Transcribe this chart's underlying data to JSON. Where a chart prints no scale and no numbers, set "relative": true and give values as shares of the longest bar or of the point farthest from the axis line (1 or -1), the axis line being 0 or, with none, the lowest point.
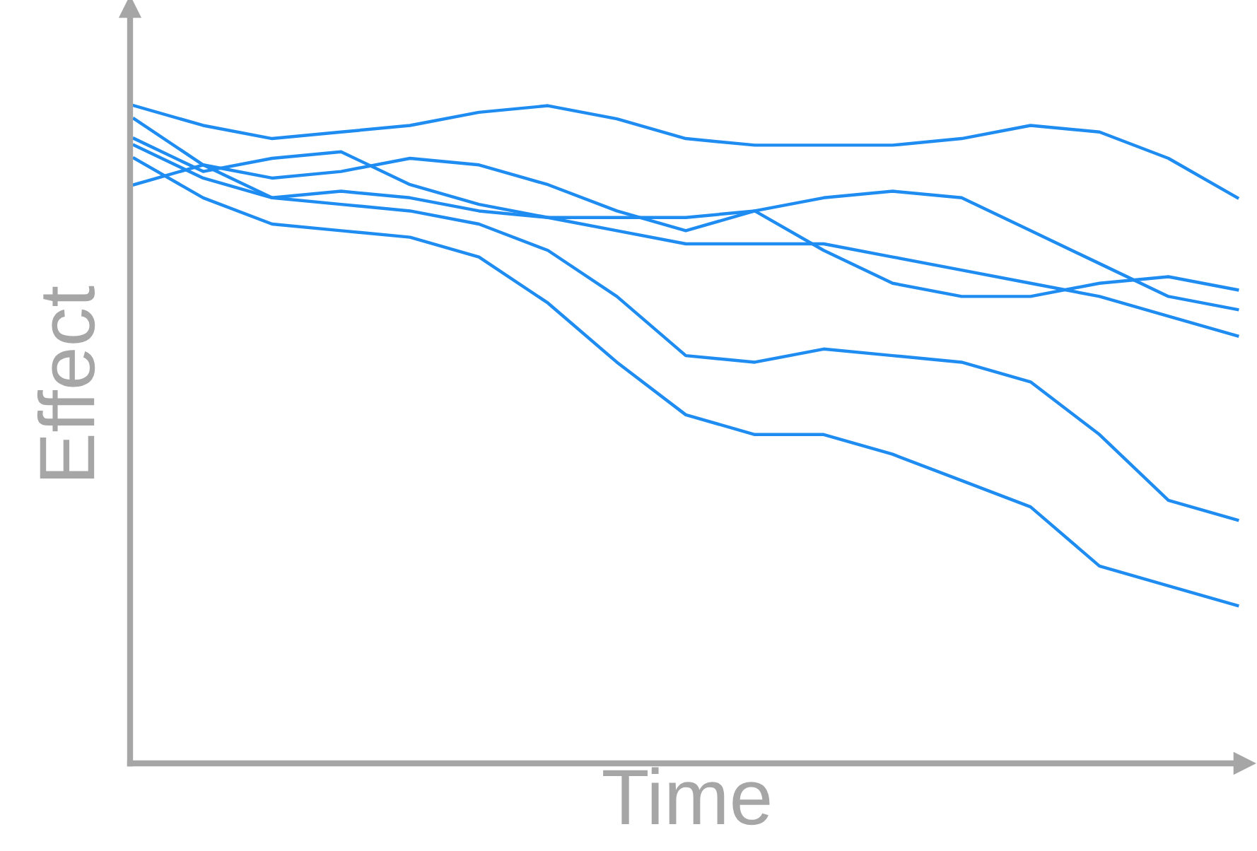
{
  "chart_data": {
    "type": "line",
    "relative": true,
    "xlabel": "Time",
    "ylabel": "Effect",
    "legend": false,
    "marker": "none",
    "line_style": "solid",
    "categories": [
      null,
      null,
      null,
      null,
      null,
      null,
      null,
      null,
      null,
      null,
      null,
      null,
      null,
      null,
      null,
      null,
      null
    ],
    "series": [
      {
        "color": "#1e8cf0",
        "values": [
          1.0,
          0.97,
          0.95,
          0.96,
          0.97,
          0.99,
          1.0,
          0.98,
          0.95,
          0.94,
          0.94,
          0.94,
          0.95,
          0.97,
          0.96,
          0.92,
          0.86
        ]
      },
      {
        "color": "#1e8cf0",
        "values": [
          0.88,
          0.91,
          0.89,
          0.9,
          0.92,
          0.91,
          0.88,
          0.84,
          0.81,
          0.84,
          0.86,
          0.87,
          0.86,
          0.81,
          0.76,
          0.71,
          0.69
        ]
      },
      {
        "color": "#1e8cf0",
        "values": [
          0.95,
          0.9,
          0.92,
          0.93,
          0.88,
          0.85,
          0.83,
          0.83,
          0.83,
          0.84,
          0.78,
          0.73,
          0.71,
          0.71,
          0.73,
          0.74,
          0.72
        ]
      },
      {
        "color": "#1e8cf0",
        "values": [
          0.94,
          0.89,
          0.86,
          0.87,
          0.86,
          0.84,
          0.83,
          0.81,
          0.79,
          0.79,
          0.79,
          0.77,
          0.75,
          0.73,
          0.71,
          0.68,
          0.65
        ]
      },
      {
        "color": "#1e8cf0",
        "values": [
          0.98,
          0.91,
          0.86,
          0.85,
          0.84,
          0.82,
          0.78,
          0.71,
          0.62,
          0.61,
          0.63,
          0.62,
          0.61,
          0.58,
          0.5,
          0.4,
          0.37
        ]
      },
      {
        "color": "#1e8cf0",
        "values": [
          0.92,
          0.86,
          0.82,
          0.81,
          0.8,
          0.77,
          0.7,
          0.61,
          0.53,
          0.5,
          0.5,
          0.47,
          0.43,
          0.39,
          0.3,
          0.27,
          0.24
        ]
      }
    ]
  }
}
